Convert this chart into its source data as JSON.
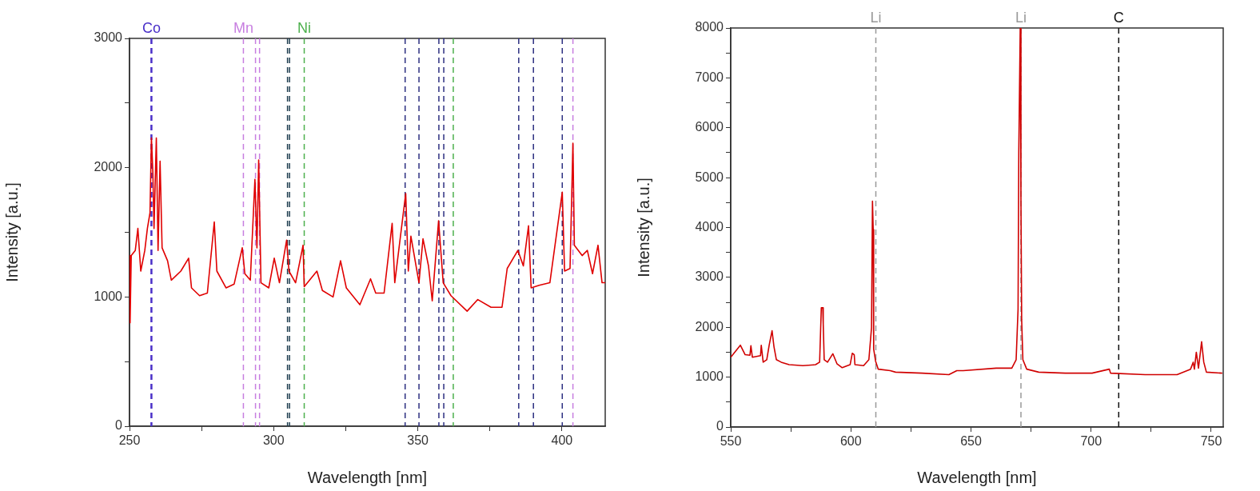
{
  "chart_data": [
    {
      "type": "line",
      "xlabel": "Wavelength [nm]",
      "ylabel": "Intensity [a.u.]",
      "xlim": [
        250,
        415
      ],
      "ylim": [
        0,
        3000
      ],
      "xticks": [
        250,
        {
          "value": 275,
          "label": null
        },
        300,
        {
          "value": 325,
          "label": null
        },
        350,
        {
          "value": 375,
          "label": null
        },
        400
      ],
      "yticks": [
        0,
        {
          "value": 500,
          "label": null
        },
        1000,
        {
          "value": 1500,
          "label": null
        },
        2000,
        {
          "value": 2500,
          "label": null
        },
        3000
      ],
      "grid": false,
      "legend": false,
      "series": [
        {
          "color": "#e00000",
          "x": [
            250,
            250.2,
            250.6,
            252,
            252.9,
            253.9,
            255.3,
            256.2,
            257.1,
            257.6,
            258.1,
            258.5,
            259.3,
            259.9,
            260.6,
            261.3,
            263.2,
            264.5,
            267.8,
            270.5,
            271.5,
            274.3,
            277,
            279.4,
            280.3,
            283.5,
            286.3,
            289.1,
            290,
            291.9,
            293.5,
            294.2,
            294.8,
            295.6,
            298.3,
            300.2,
            302,
            304.5,
            305.3,
            307.6,
            310.2,
            310.6,
            315,
            316.9,
            320.6,
            323.2,
            325.2,
            329.9,
            333.6,
            335.4,
            338.3,
            341.1,
            342,
            345.8,
            346.7,
            347.6,
            350.4,
            351.8,
            353.7,
            355,
            357.2,
            358.8,
            361.5,
            367.1,
            370.8,
            375.4,
            379.2,
            381,
            384.7,
            386.6,
            388.4,
            389.3,
            392.1,
            395.8,
            400.1,
            400.9,
            402.8,
            403.8,
            404.3,
            407,
            408.8,
            410.6,
            412.5,
            413.9,
            415
          ],
          "values": [
            1320,
            800,
            1320,
            1360,
            1530,
            1200,
            1360,
            1530,
            1650,
            2230,
            1960,
            1530,
            2230,
            1360,
            2050,
            1380,
            1280,
            1130,
            1200,
            1300,
            1070,
            1010,
            1030,
            1580,
            1200,
            1070,
            1100,
            1380,
            1180,
            1130,
            1910,
            1380,
            2060,
            1110,
            1070,
            1300,
            1110,
            1440,
            1200,
            1110,
            1400,
            1080,
            1200,
            1050,
            1000,
            1280,
            1070,
            940,
            1140,
            1030,
            1030,
            1570,
            1110,
            1800,
            1200,
            1470,
            1110,
            1450,
            1240,
            970,
            1590,
            1110,
            1010,
            890,
            980,
            920,
            920,
            1220,
            1360,
            1240,
            1550,
            1070,
            1090,
            1110,
            1810,
            1200,
            1220,
            2190,
            1400,
            1320,
            1360,
            1180,
            1400,
            1110,
            1110
          ]
        }
      ],
      "ref_lines": [
        {
          "axis": "x",
          "value": 257.6,
          "label": "Co",
          "color": "#4a30c8",
          "line_style": "dashed"
        },
        {
          "axis": "x",
          "value": 289.5,
          "label": "Mn",
          "color": "#c77ee0",
          "line_style": "dashed"
        },
        {
          "axis": "x",
          "value": 293.7,
          "color": "#c77ee0",
          "line_style": "dashed"
        },
        {
          "axis": "x",
          "value": 295.1,
          "color": "#c77ee0",
          "line_style": "dashed"
        },
        {
          "axis": "x",
          "value": 304.8,
          "color": "#1e3d4f",
          "line_style": "dashed"
        },
        {
          "axis": "x",
          "value": 305.5,
          "color": "#1e3d4f",
          "line_style": "dashed"
        },
        {
          "axis": "x",
          "value": 310.6,
          "label": "Ni",
          "color": "#4cb04c",
          "line_style": "dashed"
        },
        {
          "axis": "x",
          "value": 345.6,
          "color": "#2c2f80",
          "line_style": "dashed"
        },
        {
          "axis": "x",
          "value": 350.4,
          "color": "#2c2f80",
          "line_style": "dashed"
        },
        {
          "axis": "x",
          "value": 357.3,
          "color": "#2c2f80",
          "line_style": "dashed"
        },
        {
          "axis": "x",
          "value": 359,
          "color": "#2c2f80",
          "line_style": "dashed"
        },
        {
          "axis": "x",
          "value": 362.3,
          "color": "#4cb04c",
          "line_style": "dashed"
        },
        {
          "axis": "x",
          "value": 385,
          "color": "#2c2f80",
          "line_style": "dashed"
        },
        {
          "axis": "x",
          "value": 390.1,
          "color": "#2c2f80",
          "line_style": "dashed"
        },
        {
          "axis": "x",
          "value": 400.1,
          "color": "#2c2f80",
          "line_style": "dashed"
        },
        {
          "axis": "x",
          "value": 403.8,
          "color": "#c77ee0",
          "line_style": "dashed"
        }
      ]
    },
    {
      "type": "line",
      "xlabel": "Wavelength [nm]",
      "ylabel": "Intensity [a.u.]",
      "xlim": [
        550,
        755
      ],
      "ylim": [
        0,
        8000
      ],
      "xticks": [
        550,
        {
          "value": 575,
          "label": null
        },
        600,
        {
          "value": 625,
          "label": null
        },
        650,
        {
          "value": 675,
          "label": null
        },
        700,
        {
          "value": 725,
          "label": null
        },
        750
      ],
      "yticks": [
        0,
        {
          "value": 500,
          "label": null
        },
        1000,
        {
          "value": 1500,
          "label": null
        },
        2000,
        {
          "value": 2500,
          "label": null
        },
        3000,
        {
          "value": 3500,
          "label": null
        },
        4000,
        {
          "value": 4500,
          "label": null
        },
        5000,
        {
          "value": 5500,
          "label": null
        },
        6000,
        {
          "value": 6500,
          "label": null
        },
        7000,
        {
          "value": 7500,
          "label": null
        },
        8000
      ],
      "grid": false,
      "legend": false,
      "series": [
        {
          "color": "#d00000",
          "x": [
            550,
            554,
            556,
            558,
            558.4,
            559,
            562.4,
            562.7,
            563.5,
            565,
            566,
            567.2,
            568,
            569,
            571,
            574.3,
            580,
            585.3,
            587,
            587.7,
            588.3,
            588.5,
            588.9,
            590.3,
            592.5,
            594.2,
            596.4,
            599.7,
            600.6,
            601.4,
            601.7,
            605.3,
            607.5,
            608.6,
            609,
            609.3,
            609.5,
            610.3,
            611.4,
            616.4,
            618.6,
            629.7,
            640.8,
            644.1,
            646.8,
            660.5,
            667,
            668.8,
            669.6,
            669.9,
            670.5,
            670.8,
            671.1,
            671.6,
            673.2,
            678.2,
            689.3,
            700.4,
            707.6,
            708.1,
            722.5,
            735.8,
            741.4,
            742.5,
            743,
            743.8,
            744.7,
            746,
            746.9,
            748,
            754.6
          ],
          "values": [
            1400,
            1640,
            1450,
            1440,
            1630,
            1400,
            1430,
            1640,
            1300,
            1350,
            1640,
            1930,
            1610,
            1350,
            1300,
            1250,
            1230,
            1250,
            1300,
            2390,
            2390,
            2070,
            1350,
            1300,
            1470,
            1270,
            1190,
            1250,
            1480,
            1450,
            1250,
            1230,
            1350,
            1990,
            4530,
            3960,
            1560,
            1320,
            1160,
            1130,
            1100,
            1080,
            1050,
            1130,
            1130,
            1180,
            1180,
            1350,
            2360,
            5500,
            7990,
            4550,
            2150,
            1350,
            1160,
            1100,
            1080,
            1080,
            1160,
            1080,
            1050,
            1050,
            1160,
            1300,
            1160,
            1500,
            1180,
            1710,
            1300,
            1100,
            1080
          ]
        }
      ],
      "ref_lines": [
        {
          "axis": "x",
          "value": 610.4,
          "label": "Li",
          "color": "#999999",
          "line_style": "dashed"
        },
        {
          "axis": "x",
          "value": 670.8,
          "label": "Li",
          "color": "#999999",
          "line_style": "dashed"
        },
        {
          "axis": "x",
          "value": 711.5,
          "label": "C",
          "color": "#111111",
          "line_style": "dashed"
        }
      ]
    }
  ]
}
